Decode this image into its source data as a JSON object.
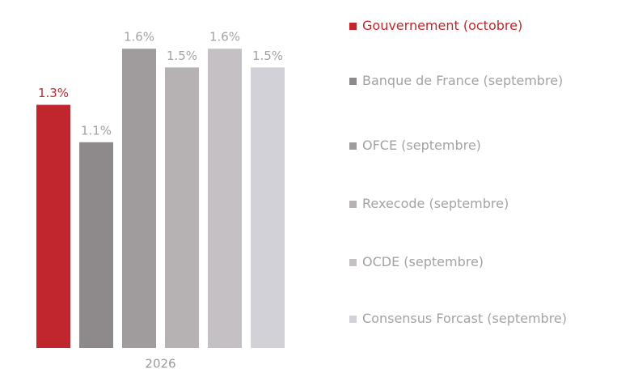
{
  "chart_data": {
    "type": "bar",
    "categories": [
      "2026"
    ],
    "ylim": [
      0,
      1.8
    ],
    "series": [
      {
        "name": "Gouvernement (octobre)",
        "color": "#c0272d",
        "values": [
          1.3
        ],
        "value_labels": [
          "1.3%"
        ]
      },
      {
        "name": "Banque de France (septembre)",
        "color": "#8e898b",
        "values": [
          1.1
        ],
        "value_labels": [
          "1.1%"
        ]
      },
      {
        "name": "OFCE (septembre)",
        "color": "#a09c9d",
        "values": [
          1.6
        ],
        "value_labels": [
          "1.6%"
        ]
      },
      {
        "name": "Rexecode (septembre)",
        "color": "#b6b2b4",
        "values": [
          1.5
        ],
        "value_labels": [
          "1.5%"
        ]
      },
      {
        "name": "OCDE (septembre)",
        "color": "#c4c0c4",
        "values": [
          1.6
        ],
        "value_labels": [
          "1.6%"
        ]
      },
      {
        "name": "Consensus Forcast (septembre)",
        "color": "#d2d1d8",
        "values": [
          1.5
        ],
        "value_labels": [
          "1.5%"
        ]
      }
    ]
  }
}
